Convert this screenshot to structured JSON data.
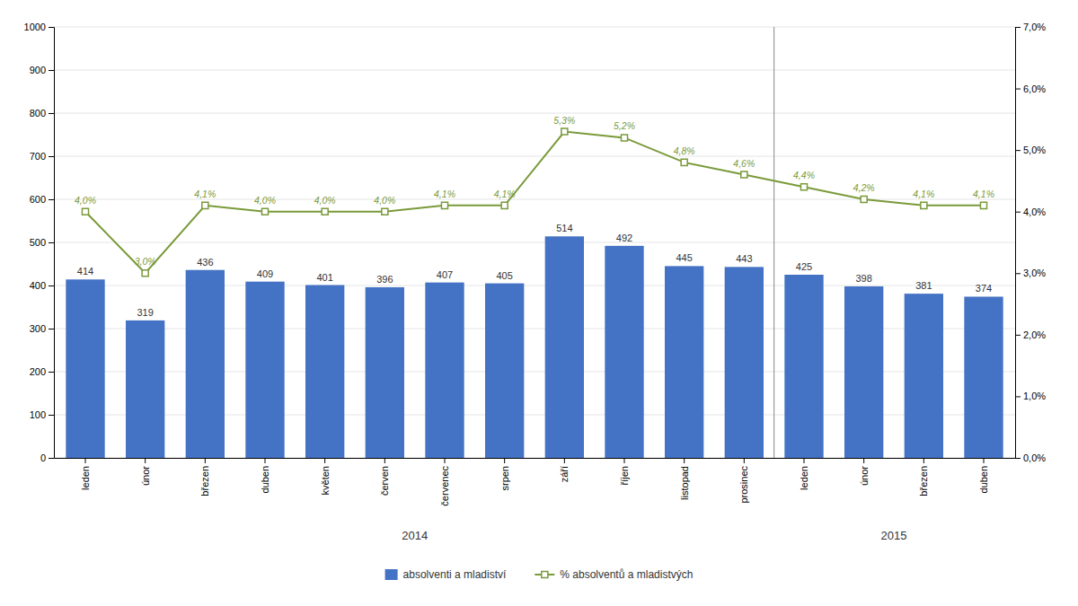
{
  "chart_data": {
    "type": "bar",
    "categories": [
      "leden",
      "únor",
      "březen",
      "duben",
      "květen",
      "červen",
      "červenec",
      "srpen",
      "září",
      "říjen",
      "listopad",
      "prosinec",
      "leden",
      "únor",
      "březen",
      "duben"
    ],
    "series": [
      {
        "name": "absolventi a mladiství",
        "type": "bar",
        "color": "#4472C4",
        "values": [
          414,
          319,
          436,
          409,
          401,
          396,
          407,
          405,
          514,
          492,
          445,
          443,
          425,
          398,
          381,
          374
        ],
        "data_labels": true
      },
      {
        "name": "% absolventů a mladistvých",
        "type": "line",
        "axis": "y2",
        "color": "#7A9A3A",
        "marker": "square",
        "values": [
          4.0,
          3.0,
          4.1,
          4.0,
          4.0,
          4.0,
          4.1,
          4.1,
          5.3,
          5.2,
          4.8,
          4.6,
          4.4,
          4.2,
          4.1,
          4.1
        ],
        "value_labels": [
          "4,0%",
          "3,0%",
          "4,1%",
          "4,0%",
          "4,0%",
          "4,0%",
          "4,1%",
          "4,1%",
          "5,3%",
          "5,2%",
          "4,8%",
          "4,6%",
          "4,4%",
          "4,2%",
          "4,1%",
          "4,1%"
        ],
        "data_labels": true
      }
    ],
    "ylim": [
      0,
      1000
    ],
    "yticks": [
      0,
      100,
      200,
      300,
      400,
      500,
      600,
      700,
      800,
      900,
      1000
    ],
    "y2lim": [
      0.0,
      7.0
    ],
    "y2ticks": [
      {
        "value": 0.0,
        "label": "0,0%"
      },
      {
        "value": 1.0,
        "label": "1,0%"
      },
      {
        "value": 2.0,
        "label": "2,0%"
      },
      {
        "value": 3.0,
        "label": "3,0%"
      },
      {
        "value": 4.0,
        "label": "4,0%"
      },
      {
        "value": 5.0,
        "label": "5,0%"
      },
      {
        "value": 6.0,
        "label": "6,0%"
      },
      {
        "value": 7.0,
        "label": "7,0%"
      }
    ],
    "annotations": [
      {
        "text": "2014",
        "first": 0,
        "last": 11
      },
      {
        "text": "2015",
        "first": 12,
        "last": 15
      }
    ],
    "grid": true,
    "legend": "bottom"
  }
}
